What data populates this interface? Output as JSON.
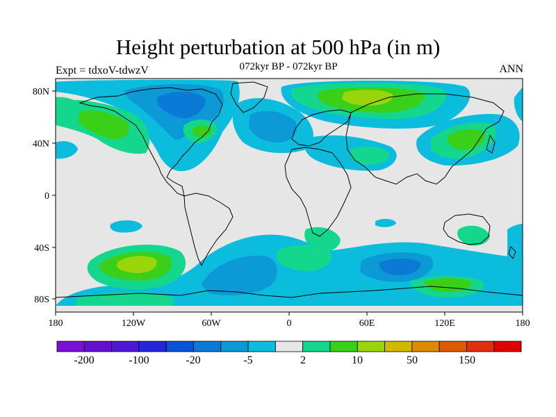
{
  "title": "Height perturbation at 500 hPa (in m)",
  "subtitle": "072kyr BP - 072kyr BP",
  "left_string": "Expt = tdxoV-tdwzV",
  "right_string": "ANN",
  "map": {
    "projection": "cylindrical equidistant",
    "lon_range": [
      -180,
      180
    ],
    "lat_range": [
      -90,
      90
    ],
    "lon_tick_labels": [
      "180",
      "120W",
      "60W",
      "0",
      "60E",
      "120E",
      "180"
    ],
    "lat_tick_labels": [
      "80N",
      "40N",
      "0",
      "40S",
      "80S"
    ],
    "background_color": "#e6e6e6"
  },
  "colorbar": {
    "colors": [
      "#7a0fd6",
      "#6510cc",
      "#4e17d4",
      "#2626d9",
      "#0a52d6",
      "#0a7ad6",
      "#0b9ad6",
      "#0bbcdc",
      "#e6e6e6",
      "#14d68c",
      "#3ad01a",
      "#9ad50c",
      "#d2b800",
      "#dc8a00",
      "#dc5a00",
      "#dc3010",
      "#e00000"
    ],
    "labels": [
      "-200",
      "-100",
      "-20",
      "-5",
      "2",
      "10",
      "50",
      "150"
    ]
  }
}
